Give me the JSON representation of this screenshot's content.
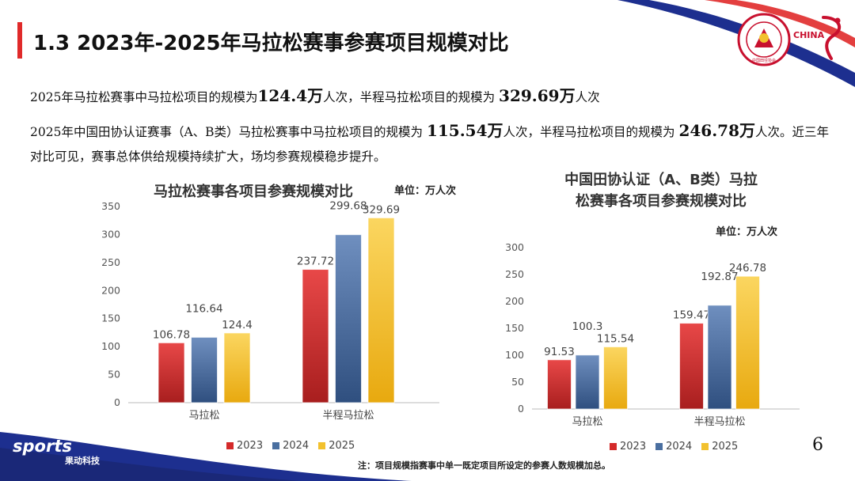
{
  "slide": {
    "title": "1.3 2023年-2025年马拉松赛事参赛项目规模对比",
    "page_number": "6",
    "footnote": "注：项目规模指赛事中单一既定项目所设定的参赛人数规模加总。"
  },
  "paragraphs": {
    "p1": {
      "t1": "2025年马拉松赛事中马拉松项目的规模为",
      "v1": "124.4万",
      "t2": "人次，半程马拉松项目的规模为 ",
      "v2": "329.69万",
      "t3": "人次"
    },
    "p2": {
      "t1": "2025年中国田协认证赛事（A、B类）马拉松赛事中马拉松项目的规模为 ",
      "v1": "115.54万",
      "t2": "人次，半程马拉松项目的规模为 ",
      "v2": "246.78万",
      "t3": "人次。近三年对比可见，赛事总体供给规模持续扩大，场均参赛规模稳步提升。"
    }
  },
  "brand": {
    "logo_text": "sports",
    "sub_text": "果动科技",
    "emblem_text": "CHINESE ATHLETICS ASSOCIATION",
    "emblem_cn": "中国田径协会",
    "china_text": "CHINA"
  },
  "colors": {
    "s2023": "#d42a2a",
    "s2024": "#4a6fa0",
    "s2025": "#f2c12e",
    "accent": "#e02a2a",
    "navy": "#1d2f8f"
  },
  "chart_data": [
    {
      "type": "bar",
      "title": "马拉松赛事各项目参赛规模对比",
      "unit": "单位：万人次",
      "categories": [
        "马拉松",
        "半程马拉松"
      ],
      "series": [
        {
          "name": "2023",
          "values": [
            106.78,
            237.72
          ]
        },
        {
          "name": "2024",
          "values": [
            116.64,
            299.68
          ]
        },
        {
          "name": "2025",
          "values": [
            124.4,
            329.69
          ]
        }
      ],
      "value_labels": [
        [
          "106.78",
          "237.72"
        ],
        [
          "116.64",
          "299.68"
        ],
        [
          "124.4",
          "329.69"
        ]
      ],
      "ylim": [
        0,
        350
      ],
      "yticks": [
        "0",
        "50",
        "100",
        "150",
        "200",
        "250",
        "300",
        "350"
      ],
      "legend": "bottom",
      "grid": false
    },
    {
      "type": "bar",
      "title": "中国田协认证（A、B类）马拉松赛事各项目参赛规模对比",
      "title_line1": "中国田协认证（A、B类）马拉",
      "title_line2": "松赛事各项目参赛规模对比",
      "unit": "单位：万人次",
      "categories": [
        "马拉松",
        "半程马拉松"
      ],
      "series": [
        {
          "name": "2023",
          "values": [
            91.53,
            159.47
          ]
        },
        {
          "name": "2024",
          "values": [
            100.3,
            192.87
          ]
        },
        {
          "name": "2025",
          "values": [
            115.54,
            246.78
          ]
        }
      ],
      "value_labels": [
        [
          "91.53",
          "159.47"
        ],
        [
          "100.3",
          "192.87"
        ],
        [
          "115.54",
          "246.78"
        ]
      ],
      "ylim": [
        0,
        300
      ],
      "yticks": [
        "0",
        "50",
        "100",
        "150",
        "200",
        "250",
        "300"
      ],
      "legend": "bottom",
      "grid": false
    }
  ]
}
